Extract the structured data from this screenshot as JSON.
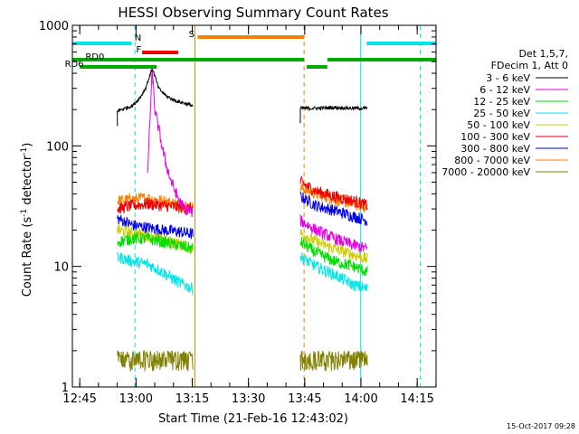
{
  "chart_data": {
    "type": "line",
    "title": "HESSI Observing Summary Count Rates",
    "xlabel": "Start Time (21-Feb-16 12:43:02)",
    "ylabel_main": "Count Rate (s",
    "ylabel_sup1": "-1",
    "ylabel_mid": " detector",
    "ylabel_sup2": "-1",
    "ylabel_end": ")",
    "yscale": "log",
    "ylim": [
      1,
      1000
    ],
    "xlim_minutes": [
      0,
      97
    ],
    "xticks": [
      {
        "label": "12:45",
        "t": 1.97
      },
      {
        "label": "13:00",
        "t": 16.97
      },
      {
        "label": "13:15",
        "t": 31.97
      },
      {
        "label": "13:30",
        "t": 46.97
      },
      {
        "label": "13:45",
        "t": 61.97
      },
      {
        "label": "14:00",
        "t": 76.97
      },
      {
        "label": "14:15",
        "t": 91.97
      }
    ],
    "yticks": [
      {
        "label": "1",
        "v": 1
      },
      {
        "label": "10",
        "v": 10
      },
      {
        "label": "100",
        "v": 100
      },
      {
        "label": "1000",
        "v": 1000
      }
    ],
    "legend": {
      "position": "right",
      "header": [
        "Det 1,5,7,",
        "FDecim 1, Att 0"
      ],
      "entries": [
        {
          "name": "3 - 6 keV",
          "color": "#000000"
        },
        {
          "name": "6 - 12 keV",
          "color": "#e600e6"
        },
        {
          "name": "12 - 25 keV",
          "color": "#00dd00"
        },
        {
          "name": "25 - 50 keV",
          "color": "#00e6e6"
        },
        {
          "name": "50 - 100 keV",
          "color": "#cccc00"
        },
        {
          "name": "100 - 300 keV",
          "color": "#ee0000"
        },
        {
          "name": "300 - 800 keV",
          "color": "#0000ee"
        },
        {
          "name": "800 - 7000 keV",
          "color": "#ff7f00"
        },
        {
          "name": "7000 - 20000 keV",
          "color": "#808000"
        }
      ]
    },
    "intervals": [
      [
        12.0,
        32.2
      ],
      [
        60.8,
        78.7
      ]
    ],
    "series": [
      {
        "name": "3 - 6 keV",
        "color": "#000000",
        "points": [
          [
            12.0,
            195
          ],
          [
            14.0,
            205
          ],
          [
            16.0,
            215
          ],
          [
            18.0,
            250
          ],
          [
            19.5,
            300
          ],
          [
            20.5,
            370
          ],
          [
            21.3,
            440
          ],
          [
            22.0,
            380
          ],
          [
            23.0,
            300
          ],
          [
            25.0,
            260
          ],
          [
            27.0,
            240
          ],
          [
            29.0,
            230
          ],
          [
            32.2,
            215
          ],
          [
            60.8,
            205
          ],
          [
            65.0,
            205
          ],
          [
            70.0,
            208
          ],
          [
            75.0,
            205
          ],
          [
            78.7,
            205
          ]
        ]
      },
      {
        "name": "6 - 12 keV",
        "color": "#e600e6",
        "points": [
          [
            20.0,
            55
          ],
          [
            20.8,
            200
          ],
          [
            21.3,
            420
          ],
          [
            22.0,
            200
          ],
          [
            23.0,
            140
          ],
          [
            24.0,
            95
          ],
          [
            25.0,
            70
          ],
          [
            26.0,
            55
          ],
          [
            27.0,
            45
          ],
          [
            28.0,
            38
          ],
          [
            29.0,
            33
          ],
          [
            30.0,
            30
          ],
          [
            32.2,
            28
          ],
          [
            60.8,
            24
          ],
          [
            65.0,
            20
          ],
          [
            70.0,
            17
          ],
          [
            75.0,
            15
          ],
          [
            78.7,
            14
          ]
        ]
      },
      {
        "name": "12 - 25 keV",
        "color": "#00dd00",
        "points": [
          [
            12.0,
            16
          ],
          [
            16.0,
            17
          ],
          [
            20.0,
            17
          ],
          [
            24.0,
            16
          ],
          [
            28.0,
            15
          ],
          [
            32.2,
            14
          ],
          [
            60.8,
            16
          ],
          [
            65.0,
            13
          ],
          [
            70.0,
            11
          ],
          [
            75.0,
            10
          ],
          [
            78.7,
            9
          ]
        ]
      },
      {
        "name": "25 - 50 keV",
        "color": "#00e6e6",
        "points": [
          [
            12.0,
            12
          ],
          [
            16.0,
            11
          ],
          [
            20.0,
            10.5
          ],
          [
            24.0,
            9
          ],
          [
            28.0,
            7.5
          ],
          [
            32.2,
            6.5
          ],
          [
            60.8,
            12
          ],
          [
            65.0,
            10
          ],
          [
            70.0,
            8.5
          ],
          [
            75.0,
            7
          ],
          [
            78.7,
            6.5
          ]
        ]
      },
      {
        "name": "50 - 100 keV",
        "color": "#cccc00",
        "points": [
          [
            12.0,
            20
          ],
          [
            16.0,
            19
          ],
          [
            20.0,
            18
          ],
          [
            24.0,
            16.5
          ],
          [
            28.0,
            15.5
          ],
          [
            32.2,
            14
          ],
          [
            60.8,
            19
          ],
          [
            65.0,
            16
          ],
          [
            70.0,
            14
          ],
          [
            75.0,
            12.5
          ],
          [
            78.7,
            11.5
          ]
        ]
      },
      {
        "name": "100 - 300 keV",
        "color": "#ee0000",
        "points": [
          [
            12.0,
            30
          ],
          [
            16.0,
            32
          ],
          [
            20.0,
            33
          ],
          [
            24.0,
            32
          ],
          [
            28.0,
            31
          ],
          [
            32.2,
            30
          ],
          [
            60.8,
            50
          ],
          [
            65.0,
            42
          ],
          [
            70.0,
            38
          ],
          [
            75.0,
            35
          ],
          [
            78.7,
            32
          ]
        ]
      },
      {
        "name": "300 - 800 keV",
        "color": "#0000ee",
        "points": [
          [
            12.0,
            25
          ],
          [
            16.0,
            22
          ],
          [
            20.0,
            21
          ],
          [
            24.0,
            20
          ],
          [
            28.0,
            19.5
          ],
          [
            32.2,
            18.5
          ],
          [
            60.8,
            38
          ],
          [
            65.0,
            32
          ],
          [
            70.0,
            29
          ],
          [
            75.0,
            26
          ],
          [
            78.7,
            24
          ]
        ]
      },
      {
        "name": "800 - 7000 keV",
        "color": "#ff7f00",
        "points": [
          [
            12.0,
            35
          ],
          [
            16.0,
            36
          ],
          [
            20.0,
            37
          ],
          [
            24.0,
            35
          ],
          [
            28.0,
            33
          ],
          [
            32.2,
            31
          ],
          [
            60.8,
            45
          ],
          [
            65.0,
            40
          ],
          [
            70.0,
            36
          ],
          [
            75.0,
            33
          ],
          [
            78.7,
            31
          ]
        ]
      },
      {
        "name": "7000 - 20000 keV",
        "color": "#808000",
        "points": [
          [
            12.0,
            1.6
          ],
          [
            16.0,
            1.7
          ],
          [
            20.0,
            1.7
          ],
          [
            24.0,
            1.6
          ],
          [
            28.0,
            1.6
          ],
          [
            32.2,
            1.6
          ],
          [
            60.8,
            1.7
          ],
          [
            65.0,
            1.6
          ],
          [
            70.0,
            1.6
          ],
          [
            75.0,
            1.6
          ],
          [
            78.7,
            1.6
          ]
        ]
      }
    ],
    "flags": [
      {
        "label": "",
        "color": "#00e6e6",
        "level": 1,
        "segments": [
          [
            0.0,
            15.8
          ],
          [
            78.5,
            97.0
          ]
        ]
      },
      {
        "label": "N",
        "color": "#00e6e6",
        "level": 1,
        "label_at": 17.5,
        "segments": []
      },
      {
        "label": "S",
        "color": "#ff7f00",
        "level": 2,
        "label_at": 31.8,
        "segments": [
          [
            33.4,
            61.8
          ]
        ]
      },
      {
        "label": "F",
        "color": "#ee0000",
        "level": 3,
        "label_at": 17.7,
        "segments": [
          [
            18.6,
            28.2
          ]
        ]
      },
      {
        "label": "RD0",
        "color": "#00aa00",
        "level": 4,
        "label_at": 6.0,
        "segments": [
          [
            0.0,
            61.8
          ],
          [
            68.0,
            97.0
          ]
        ]
      },
      {
        "label": "RD6",
        "color": "#00aa00",
        "level": 5,
        "label_at": 0.5,
        "segments": [
          [
            2.0,
            22.5
          ],
          [
            62.5,
            68.0
          ]
        ]
      }
    ],
    "vlines": [
      {
        "t": 0.0,
        "color": "#00e6e6",
        "style": "solid"
      },
      {
        "t": 16.7,
        "color": "#00e6e6",
        "style": "dashed"
      },
      {
        "t": 32.7,
        "color": "#ff7f00",
        "style": "solid"
      },
      {
        "t": 61.8,
        "color": "#ff7f00",
        "style": "dashed"
      },
      {
        "t": 76.9,
        "color": "#00e6e6",
        "style": "solid"
      },
      {
        "t": 92.8,
        "color": "#00e6e6",
        "style": "dashed"
      }
    ],
    "timestamp": "15-Oct-2017 09:28"
  }
}
